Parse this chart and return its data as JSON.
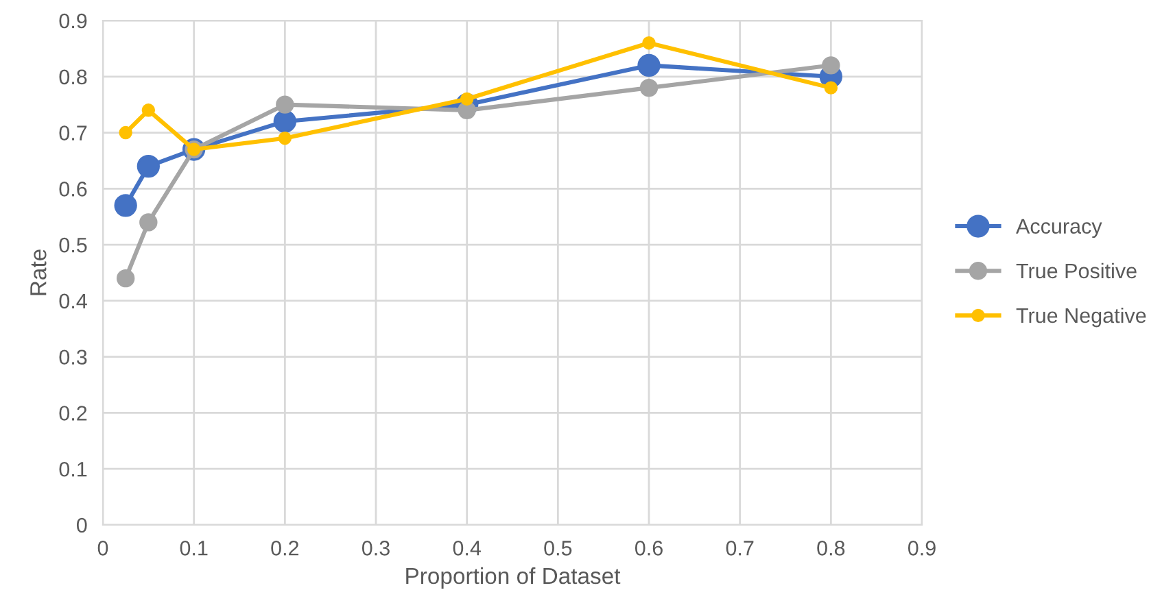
{
  "chart_data": {
    "type": "line",
    "xlabel": "Proportion of Dataset",
    "ylabel": "Rate",
    "x": [
      0.025,
      0.05,
      0.1,
      0.2,
      0.4,
      0.6,
      0.8
    ],
    "series": [
      {
        "name": "Accuracy",
        "color": "#4472c4",
        "values": [
          0.57,
          0.64,
          0.67,
          0.72,
          0.75,
          0.82,
          0.8
        ]
      },
      {
        "name": "True Positive",
        "color": "#a5a5a5",
        "values": [
          0.44,
          0.54,
          0.67,
          0.75,
          0.74,
          0.78,
          0.82
        ]
      },
      {
        "name": "True Negative",
        "color": "#ffc000",
        "values": [
          0.7,
          0.74,
          0.67,
          0.69,
          0.76,
          0.86,
          0.78
        ]
      }
    ],
    "xlim": [
      0,
      0.9
    ],
    "xticks": [
      0,
      0.1,
      0.2,
      0.3,
      0.4,
      0.5,
      0.6,
      0.7,
      0.8,
      0.9
    ],
    "ylim": [
      0,
      0.9
    ],
    "yticks": [
      0,
      0.1,
      0.2,
      0.3,
      0.4,
      0.5,
      0.6,
      0.7,
      0.8,
      0.9
    ],
    "grid": true,
    "legend": "right",
    "marker": "circle",
    "line_style": "solid"
  }
}
